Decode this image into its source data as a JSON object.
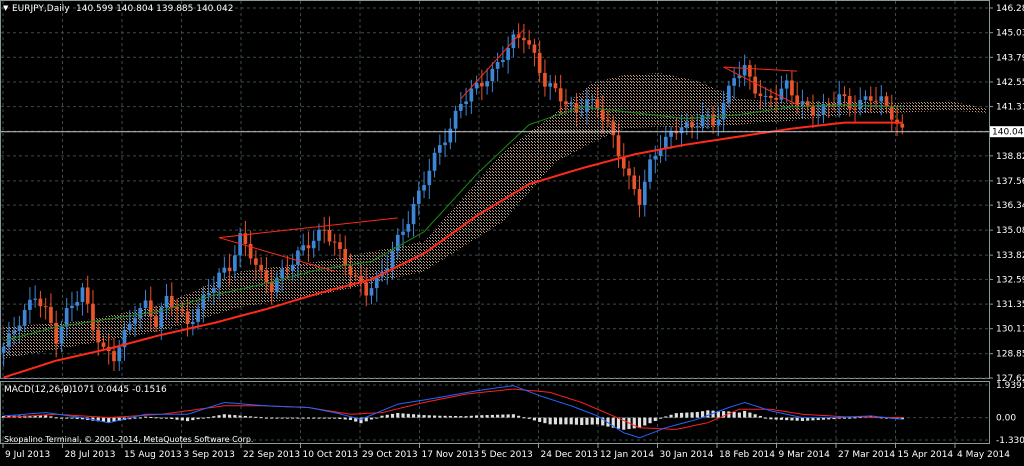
{
  "window": {
    "symbol_label": "EURJPY,Daily",
    "ohlc_label": "140.599 140.804 139.885 140.042",
    "copyright": "Skopalino Terminal, © 2001-2014, MetaQuotes Software Corp."
  },
  "colors": {
    "background": "#000000",
    "grid": "#3c4a4a",
    "bull_candle": "#3d86d6",
    "bear_candle": "#e8542c",
    "ma_fast": "#1a8a1a",
    "ma_slow": "#ff2a1a",
    "cloud": "#d99a6a",
    "cloud_white": "#e8e8e8",
    "macd_line": "#2266ff",
    "signal_line": "#ff2020",
    "hist": "#e0e0e0",
    "price_tag_bg": "#ffffff",
    "price_tag_text": "#000000"
  },
  "chart_data": [
    {
      "type": "candlestick",
      "title": "EURJPY,Daily",
      "current_price": 140.042,
      "current_price_label": "140.042",
      "ylim": [
        127.625,
        146.28
      ],
      "y_ticks": [
        "146.280",
        "145.035",
        "143.795",
        "142.550",
        "141.310",
        "140.065",
        "138.825",
        "137.565",
        "136.340",
        "135.080",
        "133.820",
        "132.595",
        "131.350",
        "130.110",
        "128.850",
        "127.625"
      ],
      "y_tick_values": [
        146.28,
        145.035,
        143.795,
        142.55,
        141.31,
        140.065,
        138.825,
        137.565,
        136.34,
        135.08,
        133.82,
        132.595,
        131.35,
        130.11,
        128.85,
        127.625
      ],
      "x_ticks": [
        "9 Jul 2013",
        "28 Jul 2013",
        "15 Aug 2013",
        "3 Sep 2013",
        "22 Sep 2013",
        "10 Oct 2013",
        "29 Oct 2013",
        "17 Nov 2013",
        "5 Dec 2013",
        "24 Dec 2013",
        "12 Jan 2014",
        "30 Jan 2014",
        "18 Feb 2014",
        "9 Mar 2014",
        "27 Mar 2014",
        "15 Apr 2014",
        "4 May 2014"
      ],
      "close_path": [
        [
          0,
          129.2
        ],
        [
          3,
          130.5
        ],
        [
          6,
          131.8
        ],
        [
          8,
          131.0
        ],
        [
          10,
          129.6
        ],
        [
          12,
          130.9
        ],
        [
          15,
          132.1
        ],
        [
          17,
          130.2
        ],
        [
          19,
          129.0
        ],
        [
          21,
          128.7
        ],
        [
          23,
          129.8
        ],
        [
          25,
          130.9
        ],
        [
          27,
          131.3
        ],
        [
          29,
          130.4
        ],
        [
          31,
          131.6
        ],
        [
          33,
          131.2
        ],
        [
          35,
          130.3
        ],
        [
          37,
          131.1
        ],
        [
          39,
          132.0
        ],
        [
          41,
          132.8
        ],
        [
          43,
          133.2
        ],
        [
          45,
          134.7
        ],
        [
          47,
          133.9
        ],
        [
          49,
          132.8
        ],
        [
          51,
          132.2
        ],
        [
          53,
          132.9
        ],
        [
          55,
          133.5
        ],
        [
          57,
          134.2
        ],
        [
          59,
          134.6
        ],
        [
          61,
          135.1
        ],
        [
          63,
          134.4
        ],
        [
          65,
          133.4
        ],
        [
          67,
          132.6
        ],
        [
          69,
          132.0
        ],
        [
          71,
          132.5
        ],
        [
          73,
          133.4
        ],
        [
          75,
          134.6
        ],
        [
          77,
          135.6
        ],
        [
          79,
          136.9
        ],
        [
          81,
          138.2
        ],
        [
          83,
          139.3
        ],
        [
          85,
          140.2
        ],
        [
          87,
          141.5
        ],
        [
          89,
          142.1
        ],
        [
          91,
          142.5
        ],
        [
          93,
          143.0
        ],
        [
          95,
          143.9
        ],
        [
          97,
          144.7
        ],
        [
          99,
          144.9
        ],
        [
          101,
          143.8
        ],
        [
          103,
          142.5
        ],
        [
          105,
          142.1
        ],
        [
          107,
          141.5
        ],
        [
          109,
          141.0
        ],
        [
          111,
          141.6
        ],
        [
          113,
          141.3
        ],
        [
          115,
          140.4
        ],
        [
          117,
          139.0
        ],
        [
          119,
          137.6
        ],
        [
          121,
          136.6
        ],
        [
          123,
          138.4
        ],
        [
          125,
          139.4
        ],
        [
          127,
          139.9
        ],
        [
          129,
          140.4
        ],
        [
          131,
          140.2
        ],
        [
          133,
          140.9
        ],
        [
          135,
          140.4
        ],
        [
          137,
          141.4
        ],
        [
          139,
          142.9
        ],
        [
          141,
          143.2
        ],
        [
          143,
          142.2
        ],
        [
          145,
          141.6
        ],
        [
          147,
          141.9
        ],
        [
          149,
          142.4
        ],
        [
          151,
          141.6
        ],
        [
          153,
          141.2
        ],
        [
          155,
          141.0
        ],
        [
          157,
          141.4
        ],
        [
          159,
          141.9
        ],
        [
          161,
          141.3
        ],
        [
          163,
          141.5
        ],
        [
          165,
          141.8
        ],
        [
          167,
          141.6
        ],
        [
          169,
          140.9
        ],
        [
          171,
          140.0
        ]
      ],
      "ma_fast": [
        [
          0,
          129.5
        ],
        [
          10,
          130.2
        ],
        [
          20,
          130.6
        ],
        [
          30,
          131.0
        ],
        [
          40,
          131.8
        ],
        [
          50,
          132.4
        ],
        [
          60,
          133.1
        ],
        [
          70,
          133.5
        ],
        [
          80,
          135.0
        ],
        [
          90,
          137.9
        ],
        [
          100,
          140.4
        ],
        [
          110,
          141.3
        ],
        [
          120,
          141.0
        ],
        [
          130,
          140.7
        ],
        [
          140,
          140.9
        ],
        [
          150,
          141.3
        ],
        [
          160,
          141.4
        ],
        [
          171,
          141.3
        ]
      ],
      "ma_slow": [
        [
          0,
          127.65
        ],
        [
          10,
          128.5
        ],
        [
          20,
          129.1
        ],
        [
          30,
          129.8
        ],
        [
          40,
          130.4
        ],
        [
          50,
          131.1
        ],
        [
          60,
          131.9
        ],
        [
          70,
          132.6
        ],
        [
          80,
          133.9
        ],
        [
          90,
          135.8
        ],
        [
          100,
          137.4
        ],
        [
          110,
          138.2
        ],
        [
          120,
          138.9
        ],
        [
          130,
          139.4
        ],
        [
          140,
          139.8
        ],
        [
          150,
          140.2
        ],
        [
          160,
          140.5
        ],
        [
          171,
          140.5
        ]
      ],
      "cloud_upper": [
        [
          0,
          130.2
        ],
        [
          15,
          130.5
        ],
        [
          30,
          131.3
        ],
        [
          45,
          133.0
        ],
        [
          60,
          133.5
        ],
        [
          70,
          134.0
        ],
        [
          80,
          134.5
        ],
        [
          95,
          139.0
        ],
        [
          105,
          141.0
        ],
        [
          112,
          142.5
        ],
        [
          118,
          142.9
        ],
        [
          125,
          143.0
        ],
        [
          132,
          142.6
        ],
        [
          140,
          141.7
        ],
        [
          150,
          141.5
        ],
        [
          160,
          141.6
        ],
        [
          170,
          141.5
        ],
        [
          180,
          141.6
        ],
        [
          187,
          141.2
        ]
      ],
      "cloud_lower": [
        [
          0,
          128.6
        ],
        [
          15,
          129.3
        ],
        [
          30,
          130.0
        ],
        [
          45,
          131.2
        ],
        [
          60,
          131.8
        ],
        [
          70,
          132.4
        ],
        [
          80,
          133.0
        ],
        [
          95,
          135.5
        ],
        [
          105,
          138.5
        ],
        [
          112,
          139.5
        ],
        [
          118,
          140.2
        ],
        [
          125,
          140.3
        ],
        [
          132,
          140.2
        ],
        [
          140,
          140.4
        ],
        [
          150,
          140.6
        ],
        [
          160,
          140.9
        ],
        [
          170,
          141.0
        ],
        [
          180,
          141.1
        ],
        [
          187,
          141.0
        ]
      ],
      "trendlines": [
        {
          "from": [
            41,
            134.7
          ],
          "to": [
            75,
            135.7
          ]
        },
        {
          "from": [
            41,
            134.7
          ],
          "to": [
            63,
            133.0
          ]
        },
        {
          "from": [
            87,
            141.7
          ],
          "to": [
            99,
            145.2
          ]
        },
        {
          "from": [
            137,
            143.3
          ],
          "to": [
            151,
            143.1
          ]
        },
        {
          "from": [
            137,
            143.3
          ],
          "to": [
            151,
            141.4
          ]
        }
      ]
    },
    {
      "type": "macd",
      "title": "MACD(12,26,9)",
      "values_label": "-0.1071 0.0445 -0.1516",
      "ylim": [
        -1.3303,
        1.9391
      ],
      "y_ticks": [
        "1.9391",
        "0.00",
        "-1.3303"
      ],
      "y_tick_values": [
        1.9391,
        0.0,
        -1.3303
      ],
      "macd_line": [
        [
          0,
          0.1
        ],
        [
          8,
          0.3
        ],
        [
          15,
          0.0
        ],
        [
          20,
          -0.3
        ],
        [
          27,
          0.2
        ],
        [
          35,
          0.2
        ],
        [
          42,
          0.9
        ],
        [
          50,
          0.7
        ],
        [
          58,
          0.6
        ],
        [
          63,
          0.3
        ],
        [
          68,
          -0.1
        ],
        [
          75,
          0.8
        ],
        [
          83,
          1.2
        ],
        [
          90,
          1.6
        ],
        [
          97,
          1.9
        ],
        [
          102,
          1.3
        ],
        [
          108,
          0.7
        ],
        [
          113,
          0.1
        ],
        [
          118,
          -0.9
        ],
        [
          121,
          -1.2
        ],
        [
          126,
          -0.6
        ],
        [
          132,
          -0.1
        ],
        [
          138,
          0.6
        ],
        [
          141,
          0.9
        ],
        [
          146,
          0.4
        ],
        [
          152,
          0.0
        ],
        [
          158,
          0.0
        ],
        [
          165,
          0.1
        ],
        [
          171,
          -0.1
        ]
      ],
      "signal_line": [
        [
          0,
          0.0
        ],
        [
          10,
          0.2
        ],
        [
          20,
          0.0
        ],
        [
          30,
          0.2
        ],
        [
          42,
          0.7
        ],
        [
          50,
          0.7
        ],
        [
          58,
          0.6
        ],
        [
          66,
          0.2
        ],
        [
          72,
          0.3
        ],
        [
          80,
          0.9
        ],
        [
          88,
          1.4
        ],
        [
          97,
          1.7
        ],
        [
          104,
          1.5
        ],
        [
          110,
          0.9
        ],
        [
          116,
          0.1
        ],
        [
          121,
          -0.6
        ],
        [
          128,
          -0.7
        ],
        [
          134,
          -0.3
        ],
        [
          140,
          0.5
        ],
        [
          146,
          0.5
        ],
        [
          152,
          0.2
        ],
        [
          160,
          0.05
        ],
        [
          171,
          0.0
        ]
      ]
    }
  ]
}
